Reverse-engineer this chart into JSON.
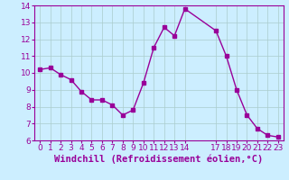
{
  "x": [
    0,
    1,
    2,
    3,
    4,
    5,
    6,
    7,
    8,
    9,
    10,
    11,
    12,
    13,
    14,
    17,
    18,
    19,
    20,
    21,
    22,
    23
  ],
  "y": [
    10.2,
    10.3,
    9.9,
    9.6,
    8.9,
    8.4,
    8.4,
    8.1,
    7.5,
    7.8,
    9.4,
    11.5,
    12.7,
    12.2,
    13.8,
    12.5,
    11.0,
    9.0,
    7.5,
    6.7,
    6.3,
    6.2
  ],
  "line_color": "#990099",
  "marker": "s",
  "marker_size": 2.5,
  "background_color": "#cceeff",
  "grid_color": "#aacccc",
  "xlabel": "Windchill (Refroidissement éolien,°C)",
  "xlabel_fontsize": 7.5,
  "ylim": [
    6,
    14
  ],
  "yticks": [
    6,
    7,
    8,
    9,
    10,
    11,
    12,
    13,
    14
  ],
  "tick_color": "#990099",
  "tick_fontsize": 6.5,
  "spine_color": "#990099",
  "linewidth": 1.0,
  "xlim": [
    -0.5,
    23.5
  ]
}
